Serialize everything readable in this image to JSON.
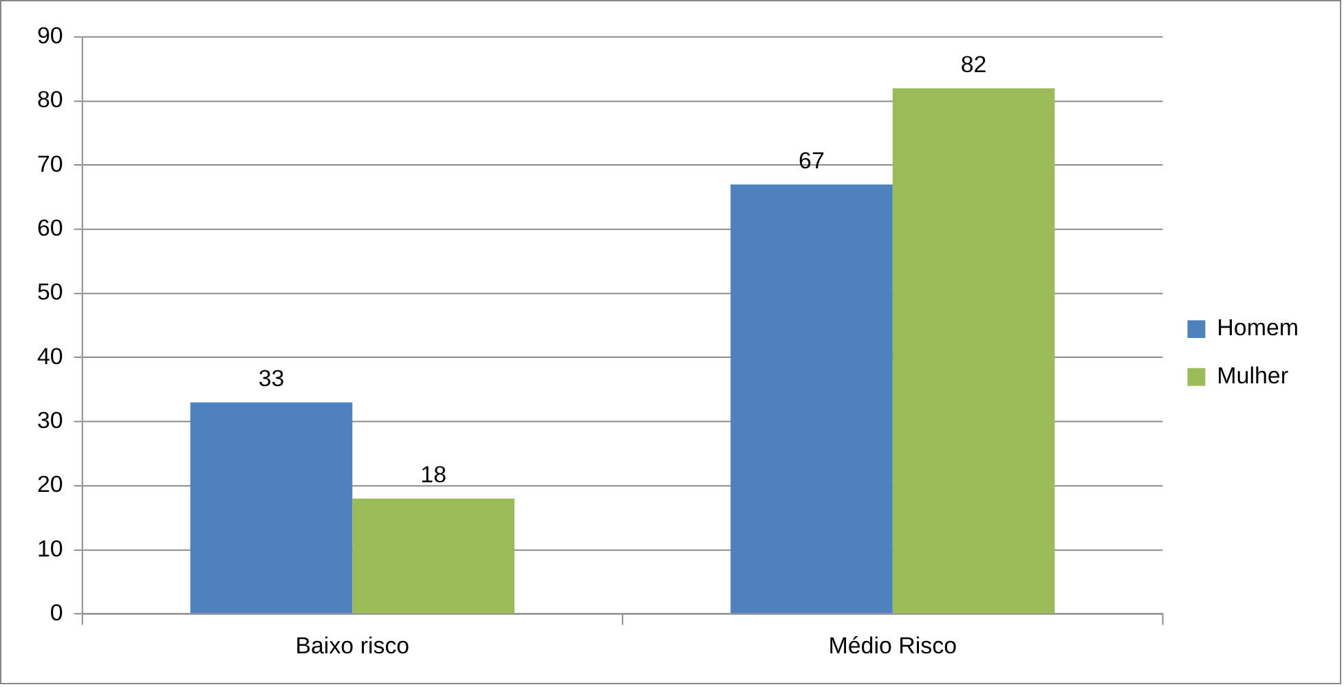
{
  "chart_data": {
    "type": "bar",
    "categories": [
      "Baixo risco",
      "Médio Risco"
    ],
    "series": [
      {
        "name": "Homem",
        "color": "#4f81bd",
        "values": [
          33,
          67
        ]
      },
      {
        "name": "Mulher",
        "color": "#9bbb59",
        "values": [
          18,
          82
        ]
      }
    ],
    "ylim": [
      0,
      90
    ],
    "yticks": [
      0,
      10,
      20,
      30,
      40,
      50,
      60,
      70,
      80,
      90
    ],
    "grid": "y",
    "legend": "right",
    "data_labels": true
  }
}
